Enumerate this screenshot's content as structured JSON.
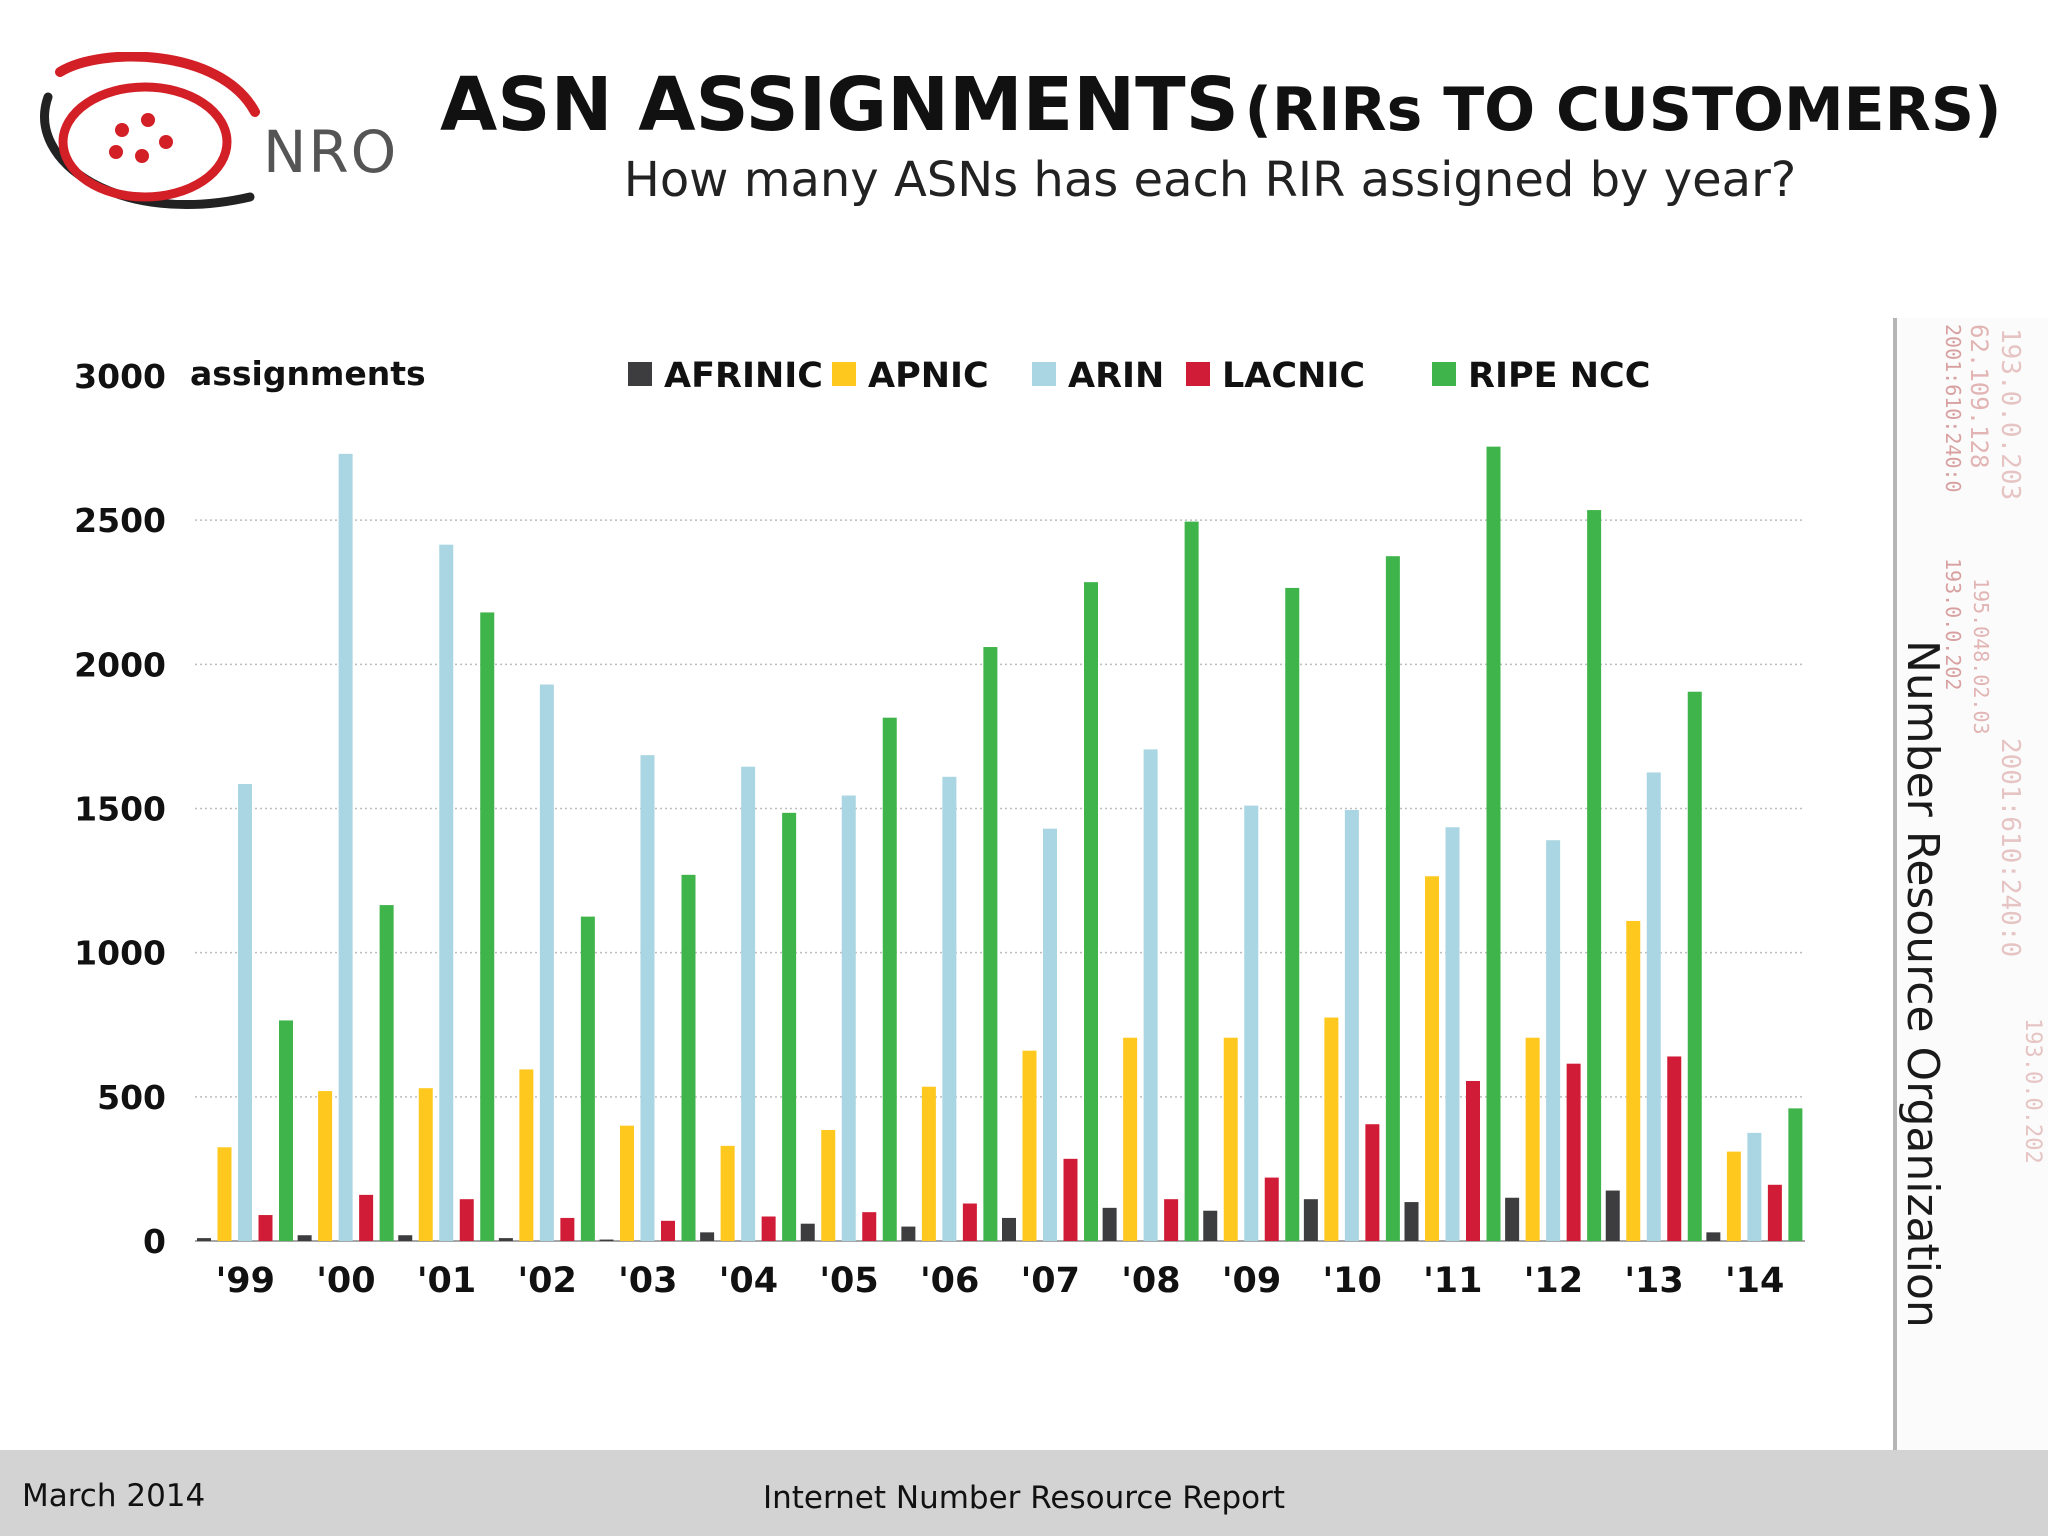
{
  "logo": {
    "text": "NRO"
  },
  "header": {
    "title": "ASN ASSIGNMENTS",
    "title_paren": "(RIRs TO CUSTOMERS)",
    "subtitle": "How many ASNs has each RIR assigned by year?"
  },
  "side": {
    "organization": "Number Resource Organization",
    "addresses": [
      "2001:610:240:0",
      "193.0.0.202",
      "62.109.128",
      "195.048.02.03",
      "193.0.0.203",
      "2001:610:240:0"
    ]
  },
  "footer": {
    "date": "March 2014",
    "report": "Internet Number Resource Report"
  },
  "colors": {
    "AFRINIC": "#3d3d3f",
    "APNIC": "#ffc81e",
    "ARIN": "#a9d6e2",
    "LACNIC": "#d01c36",
    "RIPE NCC": "#3fb44a"
  },
  "chart_data": {
    "type": "bar",
    "title": "",
    "ylabel": "assignments",
    "xlabel": "",
    "ylim": [
      0,
      3000
    ],
    "yticks": [
      0,
      500,
      1000,
      1500,
      2000,
      2500,
      3000
    ],
    "grid": true,
    "legend_position": "top",
    "categories": [
      "'99",
      "'00",
      "'01",
      "'02",
      "'03",
      "'04",
      "'05",
      "'06",
      "'07",
      "'08",
      "'09",
      "'10",
      "'11",
      "'12",
      "'13",
      "'14"
    ],
    "series": [
      {
        "name": "AFRINIC",
        "values": [
          10,
          20,
          20,
          10,
          5,
          30,
          60,
          50,
          80,
          115,
          105,
          145,
          135,
          150,
          175,
          30
        ]
      },
      {
        "name": "APNIC",
        "values": [
          325,
          520,
          530,
          595,
          400,
          330,
          385,
          535,
          660,
          705,
          705,
          775,
          1265,
          705,
          1110,
          310
        ]
      },
      {
        "name": "ARIN",
        "values": [
          1585,
          2730,
          2415,
          1930,
          1685,
          1645,
          1545,
          1610,
          1430,
          1705,
          1510,
          1495,
          1435,
          1390,
          1625,
          375
        ]
      },
      {
        "name": "LACNIC",
        "values": [
          90,
          160,
          145,
          80,
          70,
          85,
          100,
          130,
          285,
          145,
          220,
          405,
          555,
          615,
          640,
          195
        ]
      },
      {
        "name": "RIPE NCC",
        "values": [
          765,
          1165,
          2180,
          1125,
          1270,
          1485,
          1815,
          2060,
          2285,
          2495,
          2265,
          2375,
          2755,
          2535,
          1905,
          460
        ]
      }
    ]
  }
}
